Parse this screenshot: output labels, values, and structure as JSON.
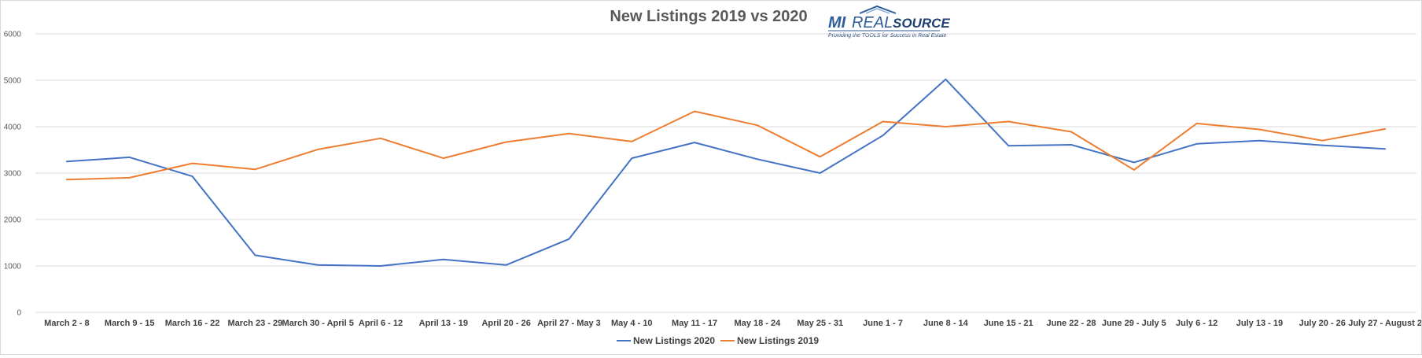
{
  "chart_data": {
    "type": "line",
    "title": "New Listings 2019 vs 2020",
    "xlabel": "",
    "ylabel": "",
    "ylim": [
      0,
      6000
    ],
    "yticks": [
      0,
      1000,
      2000,
      3000,
      4000,
      5000,
      6000
    ],
    "grid": true,
    "legend_position": "bottom",
    "categories": [
      "March 2 - 8",
      "March 9 - 15",
      "March 16 - 22",
      "March 23 - 29",
      "March 30 - April 5",
      "April 6 - 12",
      "April 13 - 19",
      "April 20 - 26",
      "April 27 - May 3",
      "May 4 - 10",
      "May 11 - 17",
      "May 18 - 24",
      "May 25 - 31",
      "June 1 - 7",
      "June 8 - 14",
      "June 15 - 21",
      "June 22 - 28",
      "June 29 - July 5",
      "July 6 - 12",
      "July 13 - 19",
      "July 20 - 26",
      "July 27 - August 2"
    ],
    "series": [
      {
        "name": "New Listings 2020",
        "color": "#4472c4",
        "values": [
          3250,
          3340,
          2930,
          1230,
          1020,
          1000,
          1140,
          1020,
          1580,
          3320,
          3660,
          3300,
          3000,
          3810,
          5020,
          3590,
          3610,
          3230,
          3630,
          3700,
          3600,
          3520
        ]
      },
      {
        "name": "New Listings 2019",
        "color": "#ed7d31",
        "values": [
          2860,
          2900,
          3210,
          3080,
          3510,
          3750,
          3320,
          3670,
          3850,
          3680,
          4330,
          4030,
          3350,
          4110,
          4000,
          4110,
          3890,
          3070,
          4070,
          3940,
          3700,
          3950
        ]
      }
    ]
  },
  "logo": {
    "mi": "MI",
    "real": "REAL",
    "source": "SOURCE",
    "tagline": "Providing the TOOLS for Success in Real Estate",
    "color": "#2e5d9a"
  }
}
